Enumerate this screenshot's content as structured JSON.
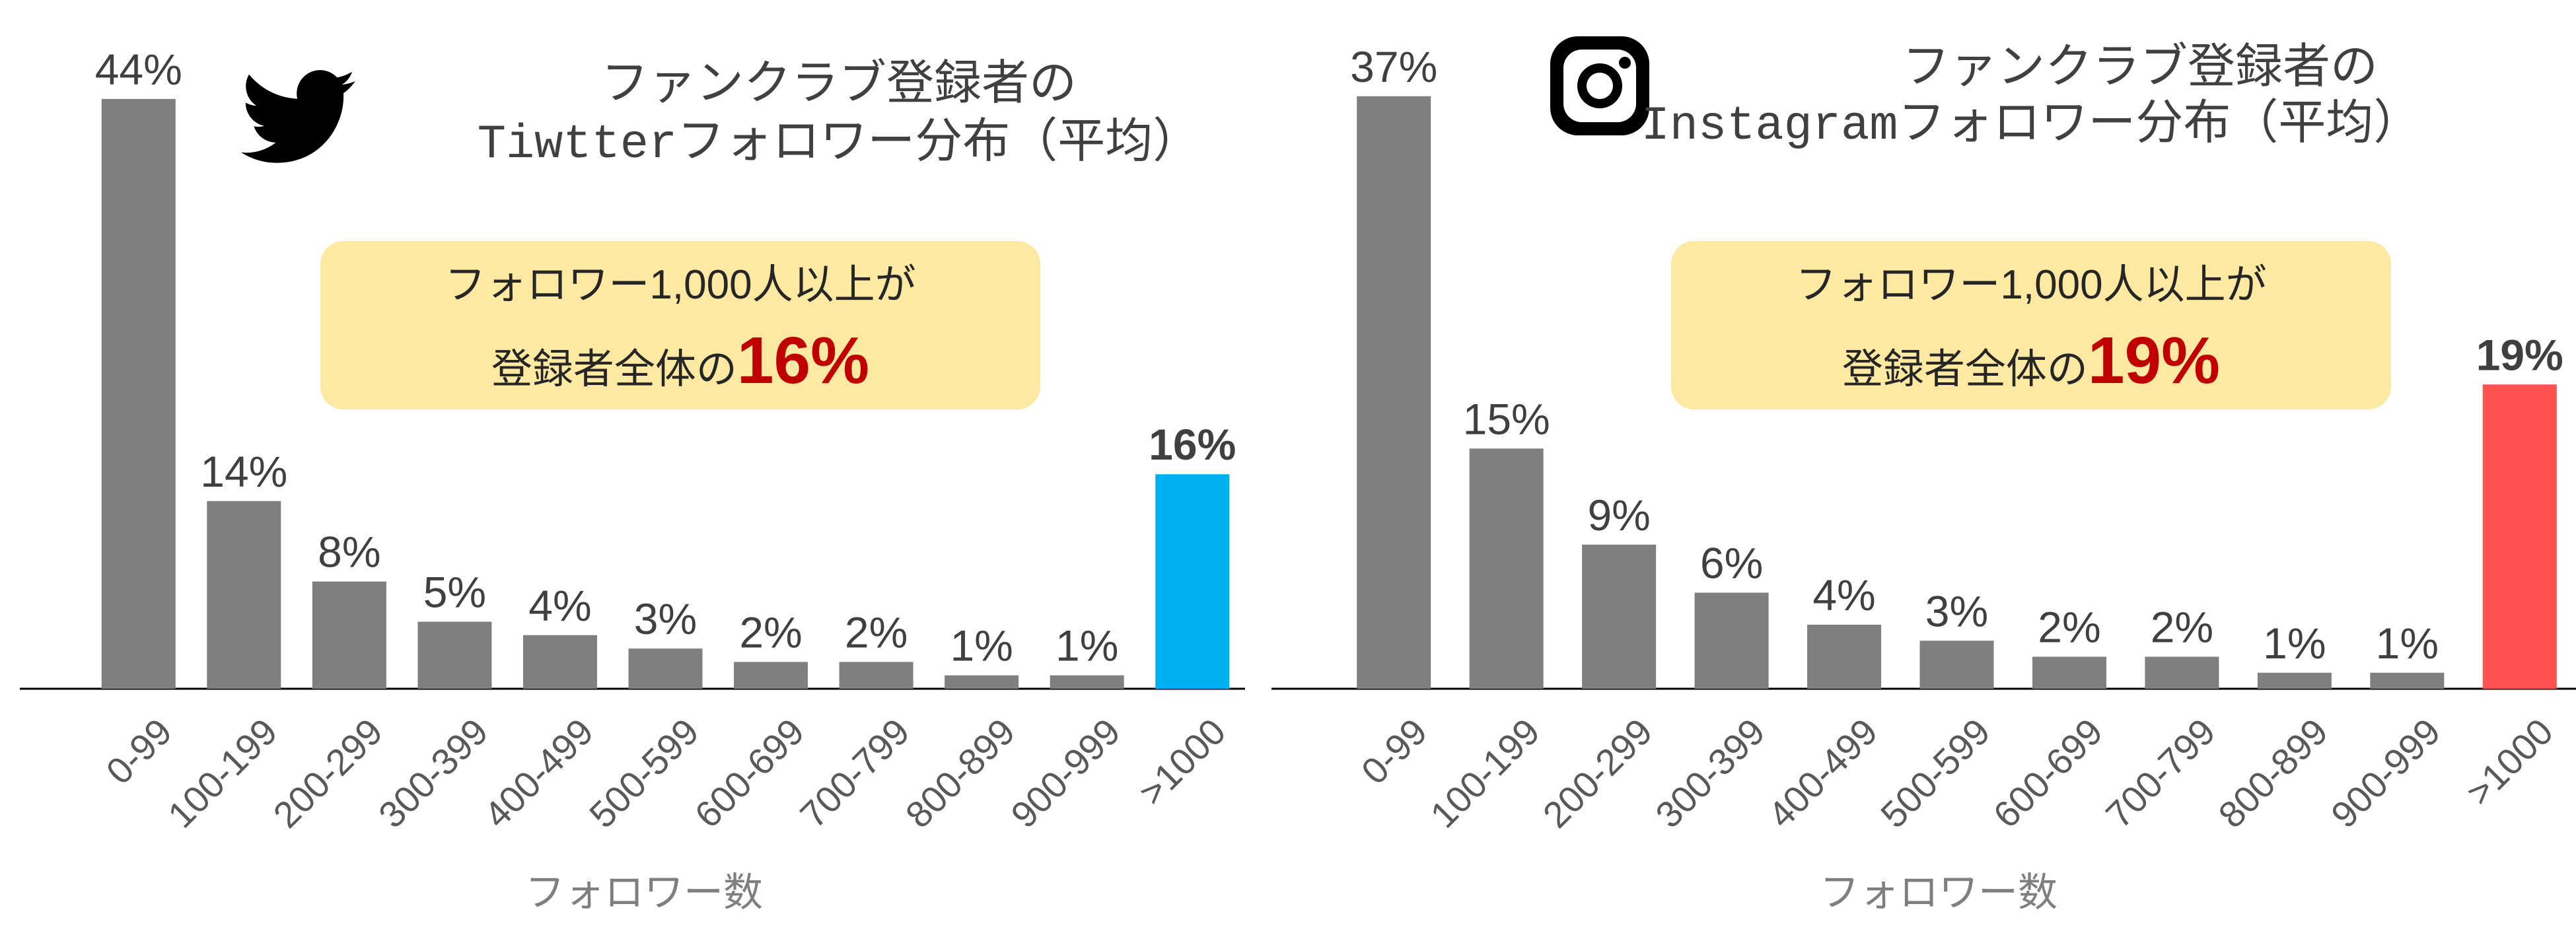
{
  "chart_data": [
    {
      "type": "bar",
      "platform_icon": "twitter-bird-icon",
      "title_line1": "ファンクラブ登録者の",
      "title_line2": "Tiwtterフォロワー分布（平均）",
      "callout_line1": "フォロワー1,000人以上が",
      "callout_line2_prefix": "登録者全体の",
      "callout_highlight": "16%",
      "xlabel": "フォロワー数",
      "categories": [
        "0-99",
        "100-199",
        "200-299",
        "300-399",
        "400-499",
        "500-599",
        "600-699",
        "700-799",
        "800-899",
        "900-999",
        ">1000"
      ],
      "values": [
        44,
        14,
        8,
        5,
        4,
        3,
        2,
        2,
        1,
        1,
        16
      ],
      "value_labels": [
        "44%",
        "14%",
        "8%",
        "5%",
        "4%",
        "3%",
        "2%",
        "2%",
        "1%",
        "1%",
        "16%"
      ],
      "bar_color": "#7f7f7f",
      "highlight_color": "#00b0f0",
      "highlight_index": 10,
      "callout_bg": "#fde9a2",
      "callout_text_color": "#c00000"
    },
    {
      "type": "bar",
      "platform_icon": "instagram-logo-icon",
      "title_line1": "ファンクラブ登録者の",
      "title_line2": "Instagramフォロワー分布（平均）",
      "callout_line1": "フォロワー1,000人以上が",
      "callout_line2_prefix": "登録者全体の",
      "callout_highlight": "19%",
      "xlabel": "フォロワー数",
      "categories": [
        "0-99",
        "100-199",
        "200-299",
        "300-399",
        "400-499",
        "500-599",
        "600-699",
        "700-799",
        "800-899",
        "900-999",
        ">1000"
      ],
      "values": [
        37,
        15,
        9,
        6,
        4,
        3,
        2,
        2,
        1,
        1,
        19
      ],
      "value_labels": [
        "37%",
        "15%",
        "9%",
        "6%",
        "4%",
        "3%",
        "2%",
        "2%",
        "1%",
        "1%",
        "19%"
      ],
      "bar_color": "#7f7f7f",
      "highlight_color": "#ff5050",
      "highlight_index": 10,
      "callout_bg": "#fde9a2",
      "callout_text_color": "#c00000"
    }
  ]
}
